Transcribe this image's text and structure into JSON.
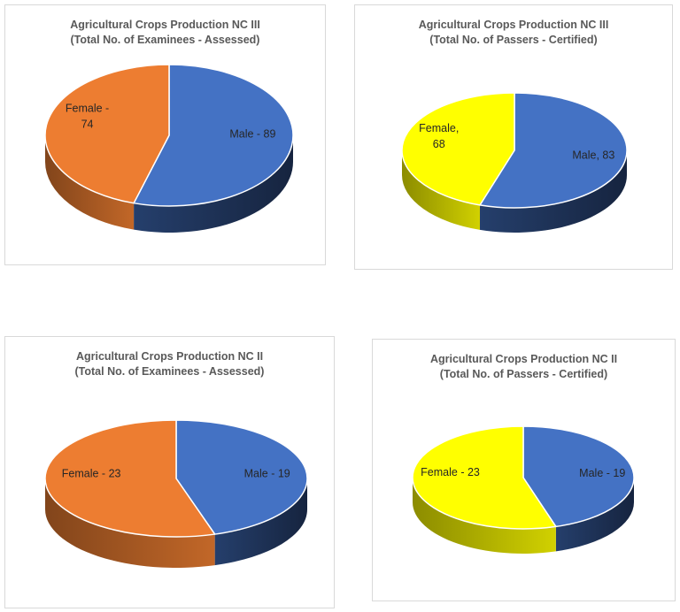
{
  "colors": {
    "male": "#4472C4",
    "female_orange": "#ED7D31",
    "female_yellow": "#FFFF00"
  },
  "chart_data": [
    {
      "type": "pie",
      "title_line1": "Agricultural Crops Production NC III",
      "title_line2": "(Total No. of Examinees - Assessed)",
      "slices": [
        {
          "key": "male",
          "value": 89,
          "label": "Male - 89",
          "color": "#4472C4"
        },
        {
          "key": "female",
          "value": 74,
          "label": "Female -\n74",
          "color": "#ED7D31"
        }
      ]
    },
    {
      "type": "pie",
      "title_line1": "Agricultural Crops Production NC III",
      "title_line2": "(Total No. of Passers - Certified)",
      "slices": [
        {
          "key": "male",
          "value": 83,
          "label": "Male, 83",
          "color": "#4472C4"
        },
        {
          "key": "female",
          "value": 68,
          "label": "Female,\n68",
          "color": "#FFFF00"
        }
      ]
    },
    {
      "type": "pie",
      "title_line1": "Agricultural Crops Production NC II",
      "title_line2": "(Total No. of Examinees - Assessed)",
      "slices": [
        {
          "key": "male",
          "value": 19,
          "label": "Male - 19",
          "color": "#4472C4"
        },
        {
          "key": "female",
          "value": 23,
          "label": "Female - 23",
          "color": "#ED7D31"
        }
      ]
    },
    {
      "type": "pie",
      "title_line1": "Agricultural Crops Production NC II",
      "title_line2": "(Total No. of Passers - Certified)",
      "slices": [
        {
          "key": "male",
          "value": 19,
          "label": "Male - 19",
          "color": "#4472C4"
        },
        {
          "key": "female",
          "value": 23,
          "label": "Female  - 23",
          "color": "#FFFF00"
        }
      ]
    }
  ]
}
